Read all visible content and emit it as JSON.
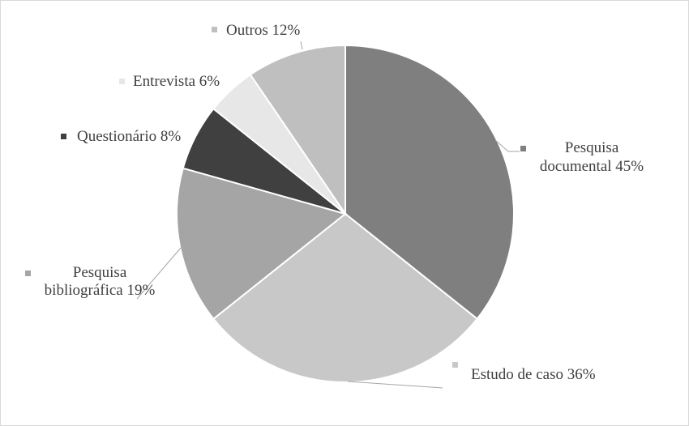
{
  "chart_data": {
    "type": "pie",
    "title": "",
    "legend": "none",
    "slices": [
      {
        "name": "Pesquisa documental",
        "label_lines": [
          "Pesquisa",
          "documental 45%"
        ],
        "value": 45,
        "color": "#7f7f7f"
      },
      {
        "name": "Estudo de caso",
        "label_lines": [
          "Estudo de caso 36%"
        ],
        "value": 36,
        "color": "#c8c8c8"
      },
      {
        "name": "Pesquisa bibliográfica",
        "label_lines": [
          "Pesquisa",
          "bibliográfica 19%"
        ],
        "value": 19,
        "color": "#a5a5a5"
      },
      {
        "name": "Questionário",
        "label_lines": [
          "Questionário 8%"
        ],
        "value": 8,
        "color": "#404040"
      },
      {
        "name": "Entrevista",
        "label_lines": [
          "Entrevista 6%"
        ],
        "value": 6,
        "color": "#e7e7e7"
      },
      {
        "name": "Outros",
        "label_lines": [
          "Outros 12%"
        ],
        "value": 12,
        "color": "#bfbfbf"
      }
    ]
  }
}
